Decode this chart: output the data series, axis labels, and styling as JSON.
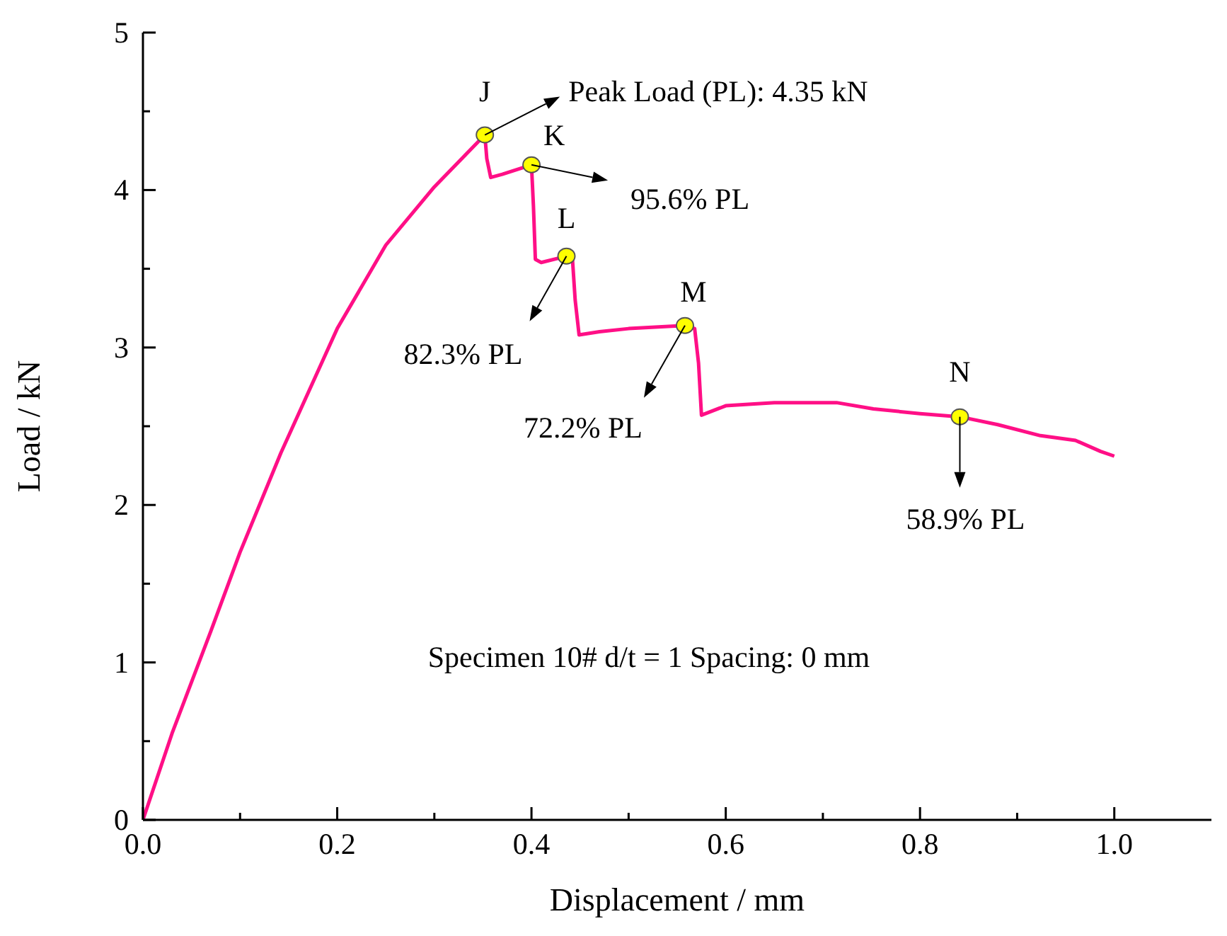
{
  "chart_data": {
    "type": "line",
    "xlabel": "Displacement / mm",
    "ylabel": "Load / kN",
    "xlim": [
      0,
      1.1
    ],
    "ylim": [
      0,
      5
    ],
    "xticks": [
      {
        "value": 0,
        "label": "0.0"
      },
      {
        "value": 0.1,
        "label": null
      },
      {
        "value": 0.2,
        "label": "0.2"
      },
      {
        "value": 0.3,
        "label": null
      },
      {
        "value": 0.4,
        "label": "0.4"
      },
      {
        "value": 0.5,
        "label": null
      },
      {
        "value": 0.6,
        "label": "0.6"
      },
      {
        "value": 0.7,
        "label": null
      },
      {
        "value": 0.8,
        "label": "0.8"
      },
      {
        "value": 0.9,
        "label": null
      },
      {
        "value": 1.0,
        "label": "1.0"
      }
    ],
    "yticks": [
      0,
      {
        "value": 0.5,
        "label": null
      },
      1,
      {
        "value": 1.5,
        "label": null
      },
      2,
      {
        "value": 2.5,
        "label": null
      },
      3,
      {
        "value": 3.5,
        "label": null
      },
      4,
      {
        "value": 4.5,
        "label": null
      },
      5
    ],
    "grid": false,
    "legend": false,
    "series": [
      {
        "color": "#ff0f86",
        "marker": "none",
        "line_style": "solid",
        "x": [
          0,
          0.03,
          0.07,
          0.1,
          0.142,
          0.2,
          0.25,
          0.3,
          0.352,
          0.354,
          0.358,
          0.37,
          0.4,
          0.402,
          0.404,
          0.41,
          0.436,
          0.442,
          0.445,
          0.449,
          0.47,
          0.5,
          0.558,
          0.568,
          0.572,
          0.575,
          0.6,
          0.65,
          0.714,
          0.752,
          0.8,
          0.841,
          0.88,
          0.924,
          0.96,
          0.986,
          1.0
        ],
        "values": [
          0,
          0.55,
          1.2,
          1.7,
          2.33,
          3.12,
          3.65,
          4.02,
          4.35,
          4.2,
          4.08,
          4.1,
          4.16,
          3.9,
          3.56,
          3.54,
          3.58,
          3.58,
          3.3,
          3.08,
          3.1,
          3.12,
          3.14,
          3.12,
          2.9,
          2.57,
          2.63,
          2.65,
          2.65,
          2.61,
          2.58,
          2.56,
          2.51,
          2.44,
          2.41,
          2.34,
          2.31
        ]
      },
      {
        "type": "scatter",
        "color": "#ffff00",
        "marker": "circle",
        "x": [
          0.352,
          0.4,
          0.436,
          0.558,
          0.841
        ],
        "values": [
          4.35,
          4.16,
          3.58,
          3.14,
          2.56
        ]
      }
    ],
    "annotations": [
      {
        "text": "J",
        "x": 0.352,
        "y": 4.35
      },
      {
        "text": "K",
        "x": 0.4,
        "y": 4.16
      },
      {
        "text": "L",
        "x": 0.436,
        "y": 3.58
      },
      {
        "text": "M",
        "x": 0.558,
        "y": 3.14
      },
      {
        "text": "N",
        "x": 0.841,
        "y": 2.56
      },
      {
        "text": "Peak Load (PL): 4.35 kN",
        "x": 0.352,
        "y": 4.35
      },
      {
        "text": "95.6% PL",
        "x": 0.4,
        "y": 4.16
      },
      {
        "text": "82.3% PL",
        "x": 0.436,
        "y": 3.58
      },
      {
        "text": "72.2% PL",
        "x": 0.558,
        "y": 3.14
      },
      {
        "text": "58.9% PL",
        "x": 0.841,
        "y": 2.56
      },
      "Specimen 10#   d/t = 1   Spacing: 0 mm"
    ]
  }
}
